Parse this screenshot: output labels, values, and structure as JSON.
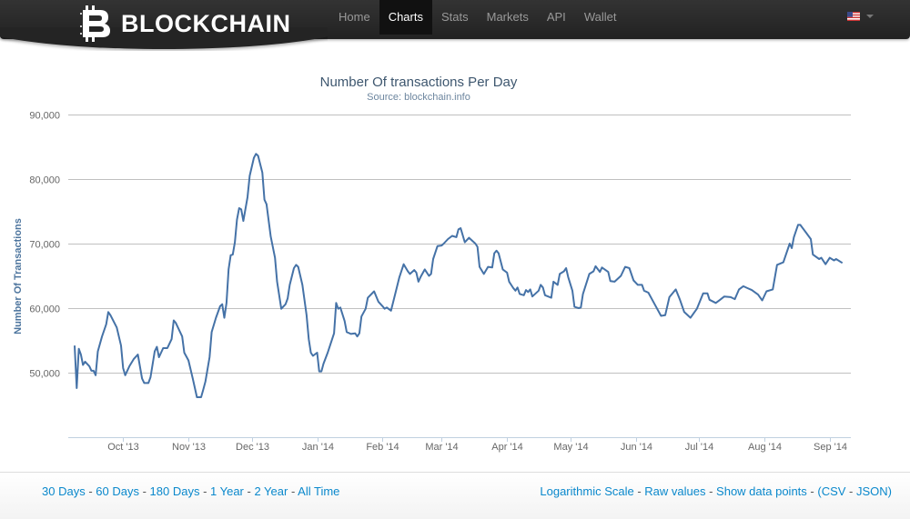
{
  "header": {
    "brand": "BLOCKCHAIN",
    "nav": [
      "Home",
      "Charts",
      "Stats",
      "Markets",
      "API",
      "Wallet"
    ],
    "active_nav": "Charts",
    "language_icon": "us-flag-icon"
  },
  "chart_data": {
    "type": "line",
    "title": "Number Of transactions Per Day",
    "subtitle": "Source: blockchain.info",
    "xlabel": "",
    "ylabel": "Number Of Transactions",
    "x_unit": "days since 2013-10-01",
    "xlim": [
      -26,
      345
    ],
    "ylim": [
      40000,
      90000
    ],
    "grid": true,
    "yticks": [
      {
        "value": 50000,
        "label": "50,000"
      },
      {
        "value": 60000,
        "label": "60,000"
      },
      {
        "value": 70000,
        "label": "70,000"
      },
      {
        "value": 80000,
        "label": "80,000"
      },
      {
        "value": 90000,
        "label": "90,000"
      }
    ],
    "xticks": [
      {
        "day": 0,
        "label": "Oct '13"
      },
      {
        "day": 31,
        "label": "Nov '13"
      },
      {
        "day": 61,
        "label": "Dec '13"
      },
      {
        "day": 92,
        "label": "Jan '14"
      },
      {
        "day": 123,
        "label": "Feb '14"
      },
      {
        "day": 151,
        "label": "Mar '14"
      },
      {
        "day": 182,
        "label": "Apr '14"
      },
      {
        "day": 212,
        "label": "May '14"
      },
      {
        "day": 243,
        "label": "Jun '14"
      },
      {
        "day": 273,
        "label": "Jul '14"
      },
      {
        "day": 304,
        "label": "Aug '14"
      },
      {
        "day": 335,
        "label": "Sep '14"
      }
    ],
    "series": [
      {
        "name": "Number Of transactions",
        "color": "#4572a7",
        "x": [
          -23,
          -22,
          -21,
          -20,
          -19,
          -18,
          -16,
          -15,
          -14,
          -13,
          -12,
          -10,
          -8,
          -7,
          -6,
          -3,
          -1,
          0,
          1,
          3,
          5,
          7,
          9,
          10,
          12,
          13,
          15,
          16,
          17,
          19,
          21,
          23,
          24,
          25,
          28,
          29,
          31,
          33,
          35,
          37,
          38,
          39,
          41,
          42,
          44,
          46,
          47,
          48,
          49,
          50,
          51,
          52,
          53,
          54,
          55,
          56,
          57,
          59,
          60,
          61,
          62,
          63,
          64,
          66,
          67,
          68,
          70,
          72,
          73,
          75,
          77,
          78,
          79,
          81,
          82,
          83,
          85,
          87,
          88,
          89,
          90,
          92,
          93,
          94,
          95,
          97,
          100,
          101,
          102,
          103,
          105,
          106,
          108,
          110,
          111,
          112,
          113,
          115,
          116,
          119,
          121,
          123,
          124,
          125,
          127,
          129,
          131,
          133,
          135,
          136,
          138,
          139,
          140,
          141,
          143,
          145,
          146,
          147,
          149,
          151,
          152,
          154,
          156,
          158,
          159,
          160,
          162,
          164,
          167,
          168,
          169,
          171,
          173,
          175,
          176,
          177,
          178,
          180,
          182,
          183,
          185,
          186,
          187,
          188,
          190,
          191,
          192,
          193,
          194,
          197,
          198,
          199,
          200,
          203,
          204,
          206,
          207,
          209,
          210,
          211,
          213,
          214,
          216,
          217,
          218,
          221,
          223,
          224,
          226,
          227,
          230,
          231,
          233,
          236,
          238,
          240,
          242,
          244,
          246,
          247,
          249,
          252,
          255,
          257,
          259,
          262,
          264,
          266,
          269,
          272,
          275,
          277,
          278,
          281,
          283,
          285,
          288,
          290,
          292,
          294,
          296,
          298,
          301,
          303,
          305,
          308,
          310,
          313,
          316,
          317,
          318,
          320,
          321,
          324,
          326,
          327,
          330,
          331,
          333,
          335,
          337,
          338,
          341
        ],
        "values": [
          54200,
          47600,
          53700,
          52800,
          51200,
          51700,
          51000,
          50300,
          50300,
          49600,
          53300,
          55600,
          57500,
          59400,
          58900,
          57000,
          54200,
          50700,
          49600,
          51000,
          52100,
          52800,
          49100,
          48400,
          48400,
          49300,
          53300,
          54000,
          52400,
          53800,
          53800,
          55200,
          58100,
          57700,
          55600,
          53100,
          51900,
          49100,
          46200,
          46200,
          47400,
          48600,
          52400,
          56300,
          58500,
          60300,
          60600,
          58500,
          60800,
          66000,
          68200,
          68300,
          70200,
          73700,
          75500,
          75300,
          73500,
          77200,
          80500,
          81900,
          83300,
          83900,
          83600,
          81000,
          76800,
          76100,
          71100,
          67800,
          64100,
          59900,
          60600,
          61500,
          63600,
          66200,
          66700,
          66400,
          63600,
          58900,
          55200,
          53100,
          52600,
          53100,
          50200,
          50200,
          51400,
          53100,
          56100,
          60800,
          59900,
          60100,
          58000,
          56300,
          56000,
          56100,
          55600,
          56100,
          58700,
          59900,
          61600,
          62600,
          61000,
          60300,
          59900,
          60100,
          59600,
          62200,
          64800,
          66800,
          65700,
          65300,
          65900,
          65500,
          64100,
          64800,
          66000,
          65000,
          65300,
          67600,
          69600,
          69700,
          70000,
          70700,
          71200,
          71000,
          72200,
          72400,
          70200,
          70900,
          70000,
          69500,
          66400,
          65300,
          66400,
          66300,
          68500,
          68900,
          68500,
          66000,
          65500,
          64100,
          63100,
          62700,
          63200,
          62200,
          62000,
          62800,
          62500,
          62900,
          61800,
          62700,
          63600,
          63200,
          62000,
          61600,
          64100,
          63600,
          65300,
          65700,
          66200,
          64800,
          62700,
          60200,
          60000,
          60100,
          62200,
          65300,
          65700,
          66500,
          65600,
          66300,
          65600,
          64200,
          64100,
          65000,
          66400,
          66200,
          64300,
          63600,
          63600,
          62700,
          62400,
          60600,
          58800,
          58900,
          61700,
          62900,
          61300,
          59400,
          58500,
          59900,
          62300,
          62300,
          61300,
          60800,
          61300,
          61800,
          61700,
          61400,
          62900,
          63400,
          63100,
          62800,
          62100,
          61200,
          62600,
          62900,
          66700,
          67100,
          70000,
          69300,
          71000,
          72900,
          72900,
          71600,
          70700,
          68300,
          67600,
          67800,
          66800,
          67800,
          67400,
          67600,
          67000
        ]
      }
    ]
  },
  "footer": {
    "ranges": [
      "30 Days",
      "60 Days",
      "180 Days",
      "1 Year",
      "2 Year",
      "All Time"
    ],
    "options": [
      "Logarithmic Scale",
      "Raw values",
      "Show data points"
    ],
    "exports": [
      "CSV",
      "JSON"
    ],
    "separator": " - "
  }
}
